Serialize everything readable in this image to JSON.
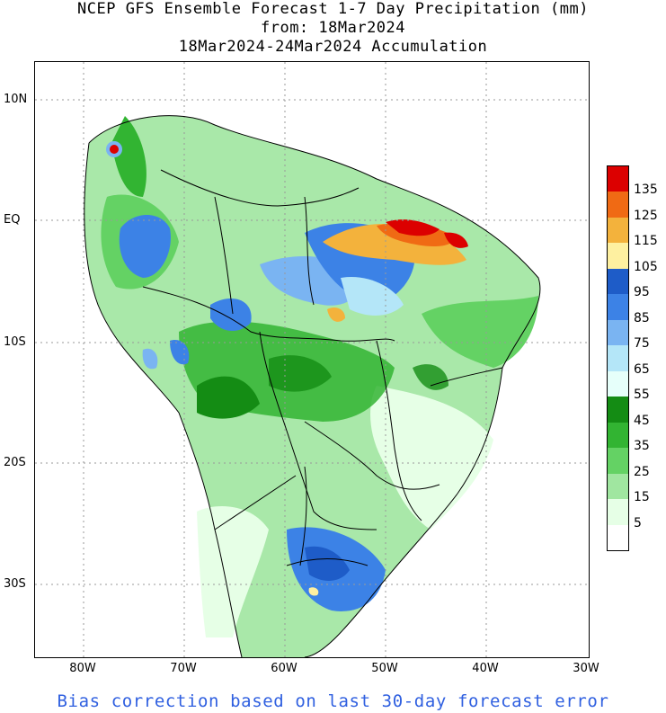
{
  "title": {
    "line1": "NCEP GFS Ensemble Forecast 1-7 Day Precipitation (mm)",
    "line2": "from: 18Mar2024",
    "line3": "18Mar2024-24Mar2024 Accumulation"
  },
  "axes": {
    "latitudes": [
      "10N",
      "EQ",
      "10S",
      "20S",
      "30S"
    ],
    "longitudes": [
      "80W",
      "70W",
      "60W",
      "50W",
      "40W",
      "30W"
    ]
  },
  "legend": {
    "labels": [
      "135",
      "125",
      "115",
      "105",
      "95",
      "85",
      "75",
      "65",
      "55",
      "45",
      "35",
      "25",
      "15",
      "5"
    ],
    "colors": [
      "#dc0000",
      "#f06a14",
      "#f3b23c",
      "#fef0a0",
      "#1e5cc8",
      "#3c82e6",
      "#7ab4f2",
      "#b4e6f8",
      "#e6fffa",
      "#148c14",
      "#32b432",
      "#64d264",
      "#a0e6a0",
      "#e6ffe6",
      "#ffffff"
    ]
  },
  "footer": "Bias correction based on last 30-day forecast error"
}
